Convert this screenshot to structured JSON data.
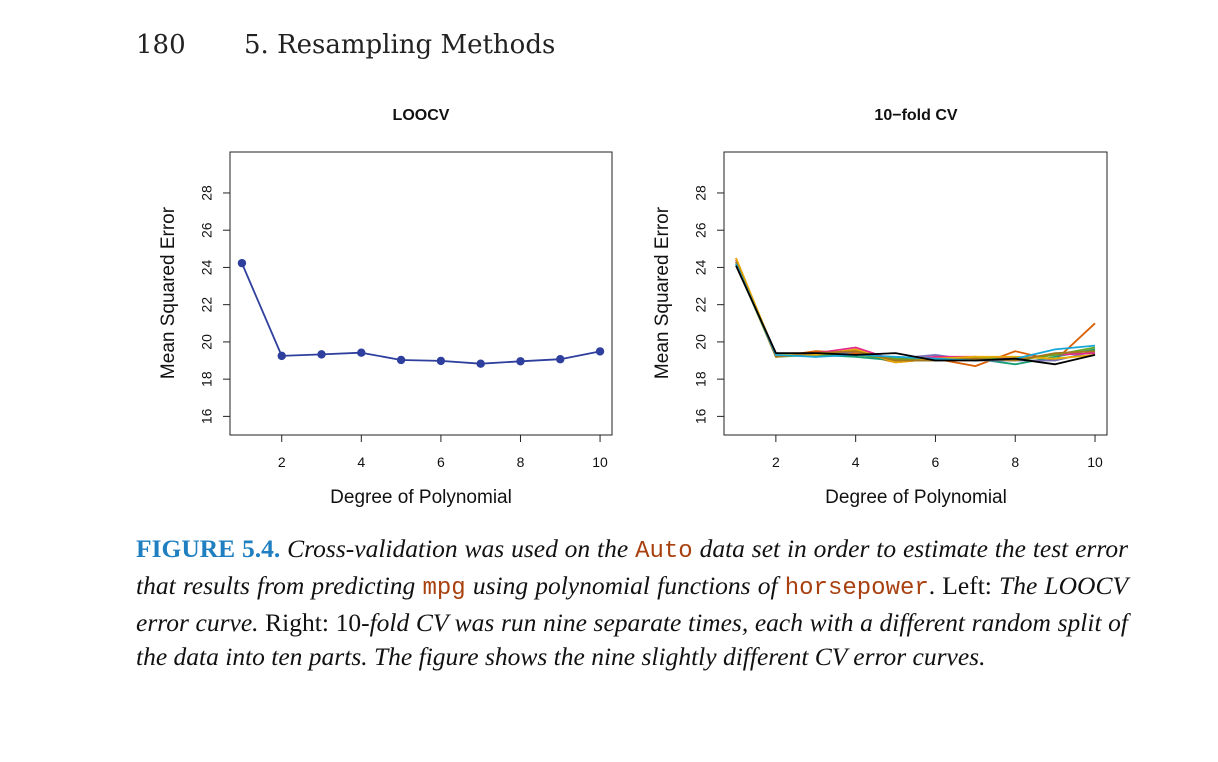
{
  "header": {
    "page_number": "180",
    "chapter": "5. Resampling Methods"
  },
  "chart_data": [
    {
      "type": "line",
      "title": "LOOCV",
      "xlabel": "Degree of Polynomial",
      "ylabel": "Mean Squared Error",
      "x": [
        1,
        2,
        3,
        4,
        5,
        6,
        7,
        8,
        9,
        10
      ],
      "xticks": [
        "2",
        "4",
        "6",
        "8",
        "10"
      ],
      "yticks": [
        "16",
        "18",
        "20",
        "22",
        "24",
        "26",
        "28"
      ],
      "xlim": [
        0.7,
        10.3
      ],
      "ylim": [
        15,
        30.2
      ],
      "grid": false,
      "series": [
        {
          "color": "#2e3f9e",
          "markers": true,
          "values": [
            24.23,
            19.25,
            19.33,
            19.42,
            19.03,
            18.98,
            18.83,
            18.96,
            19.07,
            19.49
          ]
        }
      ]
    },
    {
      "type": "line",
      "title": "10−fold CV",
      "xlabel": "Degree of Polynomial",
      "ylabel": "Mean Squared Error",
      "x": [
        1,
        2,
        3,
        4,
        5,
        6,
        7,
        8,
        9,
        10
      ],
      "xticks": [
        "2",
        "4",
        "6",
        "8",
        "10"
      ],
      "yticks": [
        "16",
        "18",
        "20",
        "22",
        "24",
        "26",
        "28"
      ],
      "xlim": [
        0.7,
        10.3
      ],
      "ylim": [
        15,
        30.2
      ],
      "grid": false,
      "series": [
        {
          "color": "#d95f02",
          "values": [
            24.5,
            19.2,
            19.5,
            19.4,
            18.9,
            19.1,
            18.7,
            19.5,
            19.0,
            21.0
          ]
        },
        {
          "color": "#1b9e77",
          "values": [
            24.3,
            19.3,
            19.3,
            19.2,
            19.0,
            19.0,
            19.1,
            18.8,
            19.2,
            19.6
          ]
        },
        {
          "color": "#7570b3",
          "values": [
            24.2,
            19.4,
            19.2,
            19.5,
            19.1,
            19.3,
            19.0,
            19.0,
            19.0,
            19.5
          ]
        },
        {
          "color": "#e7298a",
          "values": [
            24.4,
            19.3,
            19.4,
            19.7,
            19.0,
            19.2,
            19.2,
            19.1,
            19.3,
            19.4
          ]
        },
        {
          "color": "#66a61e",
          "values": [
            24.2,
            19.2,
            19.3,
            19.3,
            19.1,
            19.0,
            19.2,
            19.0,
            19.3,
            19.7
          ]
        },
        {
          "color": "#e6ab02",
          "values": [
            24.5,
            19.3,
            19.3,
            19.6,
            18.9,
            19.1,
            19.2,
            19.2,
            19.1,
            19.3
          ]
        },
        {
          "color": "#a6761d",
          "values": [
            24.3,
            19.2,
            19.4,
            19.5,
            19.0,
            19.0,
            19.1,
            19.0,
            19.4,
            19.5
          ]
        },
        {
          "color": "#17a6d6",
          "values": [
            24.2,
            19.3,
            19.2,
            19.3,
            19.2,
            19.1,
            19.0,
            19.1,
            19.6,
            19.8
          ]
        },
        {
          "color": "#000000",
          "values": [
            24.1,
            19.4,
            19.4,
            19.3,
            19.4,
            19.0,
            19.0,
            19.1,
            18.8,
            19.3
          ]
        }
      ]
    }
  ],
  "caption": {
    "label": "FIGURE 5.4.",
    "s1": "Cross-validation was used on the",
    "c1": "Auto",
    "s2": "data set in order to estimate the test error that results from predicting",
    "c2": "mpg",
    "s3": "using polynomial functions of",
    "c3": "horsepower",
    "s4": ". Left:",
    "s5": "The LOOCV error curve.",
    "s6": "Right:",
    "s7": "10-",
    "s8": "fold CV was run nine separate times, each with a different random split of the data into ten parts. The figure shows the nine slightly different CV error curves."
  }
}
